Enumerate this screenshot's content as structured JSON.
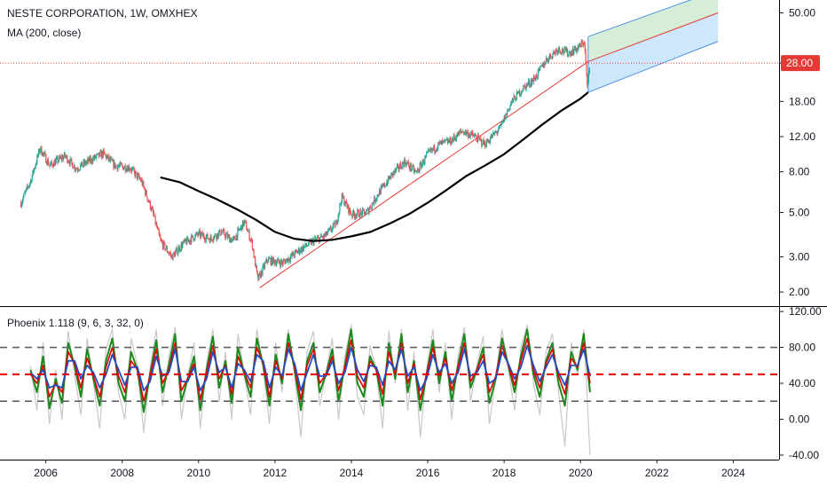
{
  "legend": {
    "symbol_line": "NESTE CORPORATION, 1W, OMXHEX",
    "ma_line": "MA (200, close)",
    "indicator_line": "Phoenix 1.118 (9, 6, 3, 32, 0)"
  },
  "colors": {
    "up": "#26a69a",
    "down": "#ef5350",
    "ma": "#000000",
    "price_line": "#e53935",
    "trend_line": "#e53935",
    "channel_blue": "#90caf9",
    "channel_green": "#a5d6a7",
    "osc_green": "#1b8a1b",
    "osc_red": "#e00000",
    "osc_blue": "#1f4fbf",
    "osc_gray": "#c8c8c8",
    "level_gray": "#606060",
    "level_red": "#e00000"
  },
  "chart_data": [
    {
      "type": "candlestick",
      "scale": "log",
      "x_range": [
        2004.8,
        2025.2
      ],
      "ylim": [
        1.7,
        58
      ],
      "y_ticks": [
        "2.00",
        "3.00",
        "5.00",
        "8.00",
        "12.00",
        "18.00",
        "28.00",
        "50.00"
      ],
      "y_tick_values": [
        2,
        3,
        5,
        8,
        12,
        18,
        28,
        50
      ],
      "x_ticks": [
        "2006",
        "2008",
        "2010",
        "2012",
        "2014",
        "2016",
        "2018",
        "2020",
        "2022",
        "2024"
      ],
      "x_tick_values": [
        2006,
        2008,
        2010,
        2012,
        2014,
        2016,
        2018,
        2020,
        2022,
        2024
      ],
      "last_price_label": "28.00",
      "last_price": 28,
      "price_path": [
        [
          2005.35,
          5.6
        ],
        [
          2005.6,
          7.2
        ],
        [
          2005.85,
          10.5
        ],
        [
          2006.1,
          8.6
        ],
        [
          2006.5,
          9.6
        ],
        [
          2006.8,
          8.3
        ],
        [
          2007.1,
          9.0
        ],
        [
          2007.5,
          9.9
        ],
        [
          2007.8,
          8.6
        ],
        [
          2008.2,
          8.4
        ],
        [
          2008.5,
          7.2
        ],
        [
          2008.8,
          5.0
        ],
        [
          2009.0,
          3.6
        ],
        [
          2009.3,
          3.0
        ],
        [
          2009.6,
          3.5
        ],
        [
          2010.0,
          3.9
        ],
        [
          2010.3,
          3.7
        ],
        [
          2010.6,
          4.0
        ],
        [
          2010.9,
          3.6
        ],
        [
          2011.2,
          4.5
        ],
        [
          2011.4,
          3.5
        ],
        [
          2011.55,
          2.3
        ],
        [
          2011.8,
          2.9
        ],
        [
          2012.2,
          2.8
        ],
        [
          2012.6,
          3.2
        ],
        [
          2013.0,
          3.6
        ],
        [
          2013.3,
          3.8
        ],
        [
          2013.6,
          4.4
        ],
        [
          2013.75,
          6.0
        ],
        [
          2014.0,
          4.9
        ],
        [
          2014.4,
          5.0
        ],
        [
          2014.7,
          6.2
        ],
        [
          2015.1,
          7.9
        ],
        [
          2015.4,
          9.0
        ],
        [
          2015.7,
          7.9
        ],
        [
          2016.0,
          9.8
        ],
        [
          2016.3,
          11.0
        ],
        [
          2016.6,
          11.4
        ],
        [
          2016.9,
          12.8
        ],
        [
          2017.2,
          12.1
        ],
        [
          2017.5,
          11.0
        ],
        [
          2017.9,
          13.3
        ],
        [
          2018.2,
          18.0
        ],
        [
          2018.5,
          21.0
        ],
        [
          2018.8,
          23.5
        ],
        [
          2019.1,
          29.0
        ],
        [
          2019.4,
          33.0
        ],
        [
          2019.7,
          31.5
        ],
        [
          2019.95,
          33.5
        ],
        [
          2020.1,
          36.0
        ],
        [
          2020.18,
          21.0
        ],
        [
          2020.25,
          28.0
        ]
      ],
      "ma200_path": [
        [
          2009.0,
          7.5
        ],
        [
          2009.5,
          7.1
        ],
        [
          2010.0,
          6.4
        ],
        [
          2010.5,
          5.8
        ],
        [
          2011.0,
          5.2
        ],
        [
          2011.5,
          4.6
        ],
        [
          2012.0,
          4.0
        ],
        [
          2012.5,
          3.7
        ],
        [
          2013.0,
          3.6
        ],
        [
          2013.5,
          3.65
        ],
        [
          2014.0,
          3.8
        ],
        [
          2014.5,
          4.0
        ],
        [
          2015.0,
          4.4
        ],
        [
          2015.5,
          4.9
        ],
        [
          2016.0,
          5.6
        ],
        [
          2016.5,
          6.5
        ],
        [
          2017.0,
          7.6
        ],
        [
          2017.5,
          8.6
        ],
        [
          2018.0,
          9.8
        ],
        [
          2018.5,
          11.6
        ],
        [
          2019.0,
          13.8
        ],
        [
          2019.5,
          16.2
        ],
        [
          2020.0,
          18.6
        ],
        [
          2020.2,
          20.0
        ]
      ],
      "trend_line": [
        [
          2011.6,
          2.1
        ],
        [
          2020.2,
          28.5
        ]
      ],
      "regression_channel": {
        "x": [
          2020.2,
          2023.6
        ],
        "upper": [
          38.0,
          65.0
        ],
        "middle": [
          28.5,
          50.0
        ],
        "lower": [
          20.0,
          36.0
        ]
      }
    },
    {
      "type": "line",
      "title": "Phoenix 1.118 (9, 6, 3, 32, 0)",
      "x_range": [
        2004.8,
        2025.2
      ],
      "ylim": [
        -45,
        125
      ],
      "y_ticks": [
        "120.00",
        "80.00",
        "40.00",
        "0.00",
        "-40.00"
      ],
      "y_tick_values": [
        120,
        80,
        40,
        0,
        -40
      ],
      "levels": [
        80,
        50,
        20
      ],
      "x_start": 2005.6,
      "x_end": 2020.25,
      "series": [
        {
          "color": "green",
          "values": [
            55,
            30,
            70,
            12,
            45,
            18,
            85,
            60,
            25,
            78,
            45,
            15,
            65,
            90,
            40,
            20,
            75,
            55,
            8,
            50,
            88,
            30,
            60,
            95,
            20,
            45,
            70,
            10,
            55,
            92,
            35,
            65,
            18,
            80,
            50,
            25,
            90,
            60,
            15,
            72,
            40,
            95,
            55,
            10,
            65,
            85,
            30,
            50,
            78,
            20,
            60,
            100,
            40,
            25,
            70,
            55,
            15,
            85,
            45,
            95,
            30,
            65,
            10,
            50,
            88,
            40,
            75,
            20,
            60,
            95,
            35,
            55,
            80,
            18,
            45,
            90,
            60,
            30,
            70,
            100,
            50,
            25,
            65,
            85,
            40,
            15,
            75,
            55,
            95,
            30
          ]
        },
        {
          "color": "red",
          "values": [
            50,
            40,
            60,
            25,
            40,
            30,
            75,
            62,
            35,
            68,
            48,
            25,
            58,
            80,
            48,
            30,
            65,
            55,
            20,
            48,
            78,
            40,
            55,
            85,
            32,
            45,
            62,
            22,
            52,
            82,
            45,
            60,
            28,
            70,
            52,
            35,
            80,
            62,
            25,
            65,
            45,
            85,
            58,
            22,
            60,
            78,
            40,
            50,
            70,
            32,
            58,
            88,
            48,
            35,
            65,
            55,
            28,
            75,
            50,
            85,
            40,
            62,
            22,
            50,
            80,
            48,
            68,
            32,
            58,
            85,
            42,
            55,
            72,
            30,
            48,
            82,
            60,
            38,
            65,
            90,
            55,
            35,
            62,
            78,
            48,
            28,
            68,
            58,
            85,
            40
          ]
        },
        {
          "color": "blue",
          "values": [
            52,
            45,
            55,
            35,
            38,
            35,
            65,
            65,
            45,
            60,
            52,
            35,
            50,
            72,
            55,
            38,
            58,
            58,
            32,
            42,
            70,
            48,
            52,
            78,
            42,
            42,
            58,
            32,
            45,
            75,
            52,
            58,
            35,
            62,
            55,
            42,
            72,
            65,
            35,
            58,
            48,
            78,
            62,
            32,
            52,
            72,
            48,
            48,
            65,
            40,
            52,
            80,
            55,
            42,
            60,
            58,
            38,
            65,
            55,
            78,
            48,
            58,
            32,
            45,
            72,
            52,
            62,
            40,
            52,
            78,
            48,
            52,
            65,
            40,
            45,
            75,
            62,
            45,
            58,
            82,
            60,
            42,
            58,
            72,
            52,
            38,
            60,
            60,
            78,
            48
          ]
        },
        {
          "color": "gray",
          "values": [
            60,
            10,
            85,
            -5,
            55,
            0,
            98,
            50,
            5,
            90,
            40,
            -10,
            78,
            100,
            30,
            0,
            90,
            60,
            -15,
            55,
            100,
            15,
            70,
            102,
            0,
            48,
            85,
            -10,
            62,
            100,
            20,
            75,
            0,
            95,
            50,
            5,
            100,
            58,
            -5,
            85,
            30,
            100,
            50,
            -20,
            75,
            98,
            15,
            52,
            90,
            0,
            70,
            105,
            25,
            5,
            82,
            55,
            -10,
            98,
            40,
            100,
            10,
            75,
            -20,
            55,
            100,
            30,
            85,
            0,
            70,
            102,
            20,
            60,
            92,
            -5,
            45,
            100,
            55,
            10,
            80,
            105,
            40,
            5,
            75,
            95,
            30,
            -30,
            85,
            50,
            100,
            -40
          ]
        }
      ]
    }
  ]
}
